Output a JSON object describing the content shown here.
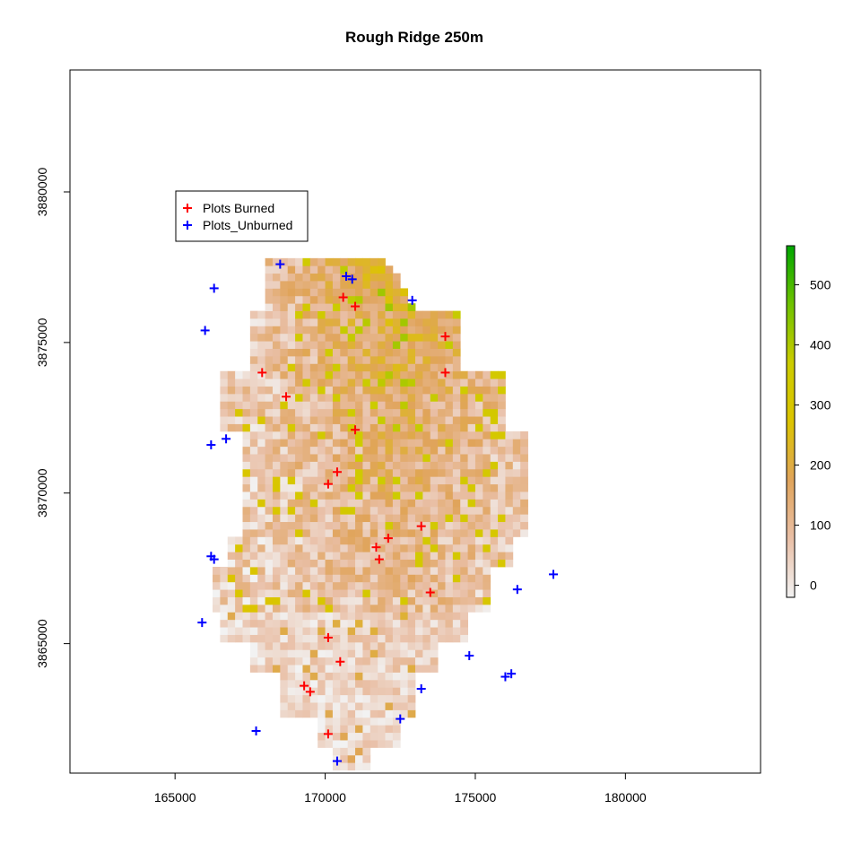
{
  "chart_data": {
    "type": "heatmap",
    "title": "Rough Ridge 250m",
    "xlabel": "",
    "ylabel": "",
    "xlim": [
      161500,
      184500
    ],
    "ylim": [
      3860700,
      3884050
    ],
    "x_ticks": [
      "165000",
      "170000",
      "175000",
      "180000"
    ],
    "y_ticks": [
      "3865000",
      "3870000",
      "3875000",
      "3880000"
    ],
    "cell_size_m": 250,
    "raster_extent": {
      "x": [
        166000,
        177000
      ],
      "y": [
        3860800,
        3877800
      ]
    },
    "colorbar": {
      "range": [
        -20,
        565
      ],
      "ticks": [
        "0",
        "100",
        "200",
        "300",
        "400",
        "500"
      ],
      "tick_values": [
        0,
        100,
        200,
        300,
        400,
        500
      ],
      "colors": [
        "#f2f2f2",
        "#e9bfa6",
        "#e0a45b",
        "#dcc400",
        "#cccc00",
        "#6fc200",
        "#00a600"
      ]
    },
    "legend": {
      "position": "top-left",
      "entries": [
        "Plots Burned",
        "Plots_Unburned"
      ],
      "colors": [
        "#ff0000",
        "#0000ff"
      ]
    },
    "series": [
      {
        "name": "Plots Burned",
        "color": "#ff0000",
        "points": [
          [
            170600,
            3876500
          ],
          [
            171000,
            3876200
          ],
          [
            174000,
            3875200
          ],
          [
            167900,
            3874000
          ],
          [
            174000,
            3874000
          ],
          [
            168700,
            3873200
          ],
          [
            171000,
            3872100
          ],
          [
            170400,
            3870700
          ],
          [
            170100,
            3870300
          ],
          [
            173200,
            3868900
          ],
          [
            172100,
            3868500
          ],
          [
            171700,
            3868200
          ],
          [
            171800,
            3867800
          ],
          [
            173500,
            3866700
          ],
          [
            170100,
            3865200
          ],
          [
            170500,
            3864400
          ],
          [
            169300,
            3863600
          ],
          [
            169500,
            3863400
          ],
          [
            170100,
            3862000
          ]
        ]
      },
      {
        "name": "Plots_Unburned",
        "color": "#0000ff",
        "points": [
          [
            168500,
            3877600
          ],
          [
            170700,
            3877200
          ],
          [
            170900,
            3877100
          ],
          [
            166300,
            3876800
          ],
          [
            172900,
            3876400
          ],
          [
            166000,
            3875400
          ],
          [
            166700,
            3871800
          ],
          [
            166200,
            3871600
          ],
          [
            166200,
            3867900
          ],
          [
            166300,
            3867800
          ],
          [
            177600,
            3867300
          ],
          [
            176400,
            3866800
          ],
          [
            165900,
            3865700
          ],
          [
            174800,
            3864600
          ],
          [
            176200,
            3864000
          ],
          [
            176000,
            3863900
          ],
          [
            173200,
            3863500
          ],
          [
            172500,
            3862500
          ],
          [
            167700,
            3862100
          ],
          [
            170400,
            3861100
          ]
        ]
      }
    ]
  }
}
